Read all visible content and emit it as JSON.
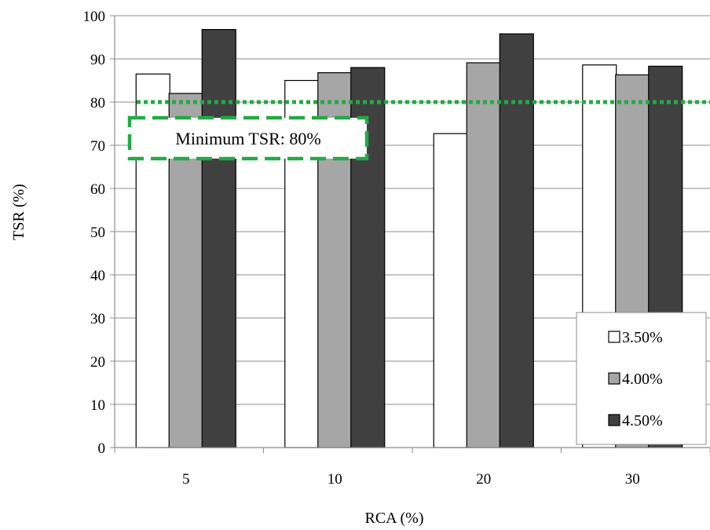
{
  "chart_data": {
    "type": "bar",
    "categories": [
      "5",
      "10",
      "20",
      "30"
    ],
    "series": [
      {
        "name": "3.50%",
        "values": [
          86.5,
          85.0,
          72.7,
          88.6
        ]
      },
      {
        "name": "4.00%",
        "values": [
          82.0,
          86.8,
          89.1,
          86.3
        ]
      },
      {
        "name": "4.50%",
        "values": [
          96.8,
          88.0,
          95.8,
          88.3
        ]
      }
    ],
    "xlabel": "RCA (%)",
    "ylabel": "TSR (%)",
    "ylim": [
      0,
      100
    ],
    "yticks": [
      0,
      10,
      20,
      30,
      40,
      50,
      60,
      70,
      80,
      90,
      100
    ],
    "grid": true,
    "legend_position": "bottom-right",
    "reference_line": {
      "value": 80,
      "style": "dotted",
      "color": "#22aa44"
    },
    "annotation": {
      "text": "Minimum TSR: 80%",
      "border": "dashed",
      "color": "#22aa44"
    },
    "colors": {
      "3.50%": "#ffffff",
      "4.00%": "#a6a6a6",
      "4.50%": "#404040"
    }
  }
}
